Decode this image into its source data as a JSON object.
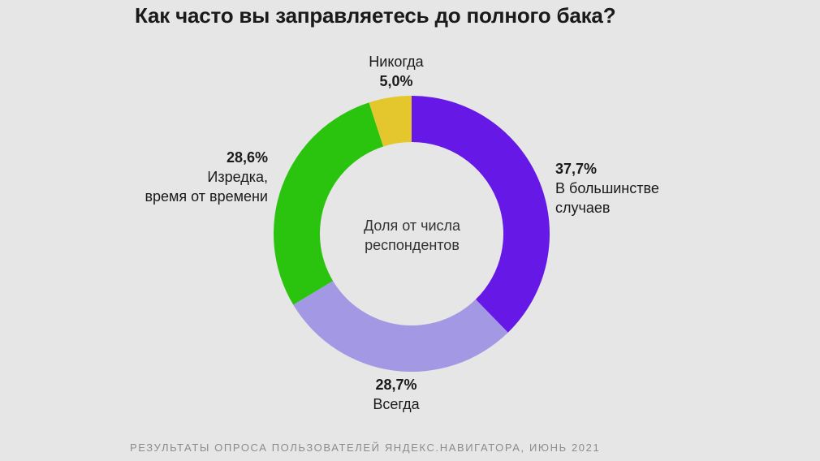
{
  "title": "Как часто вы заправляетесь до полного бака?",
  "center_label": "Доля от числа респондентов",
  "footer": "РЕЗУЛЬТАТЫ ОПРОСА ПОЛЬЗОВАТЕЛЕЙ ЯНДЕКС.НАВИГАТОРА, ИЮНЬ 2021",
  "chart_data": {
    "type": "pie",
    "variant": "donut",
    "title": "Как часто вы заправляетесь до полного бака?",
    "unit": "%",
    "slices": [
      {
        "label": "В большинстве случаев",
        "value": 37.7,
        "value_label": "37,7%",
        "color": "#6518e6",
        "label_lines": [
          "В большинстве",
          "случаев"
        ]
      },
      {
        "label": "Всегда",
        "value": 28.7,
        "value_label": "28,7%",
        "color": "#a398e3",
        "label_lines": [
          "Всегда"
        ]
      },
      {
        "label": "Изредка, время от времени",
        "value": 28.6,
        "value_label": "28,6%",
        "color": "#2ac40f",
        "label_lines": [
          "Изредка,",
          "время от времени"
        ]
      },
      {
        "label": "Никогда",
        "value": 5.0,
        "value_label": "5,0%",
        "color": "#e3c72d",
        "label_lines": [
          "Никогда"
        ]
      }
    ],
    "start_angle_deg": 0,
    "direction": "clockwise"
  }
}
